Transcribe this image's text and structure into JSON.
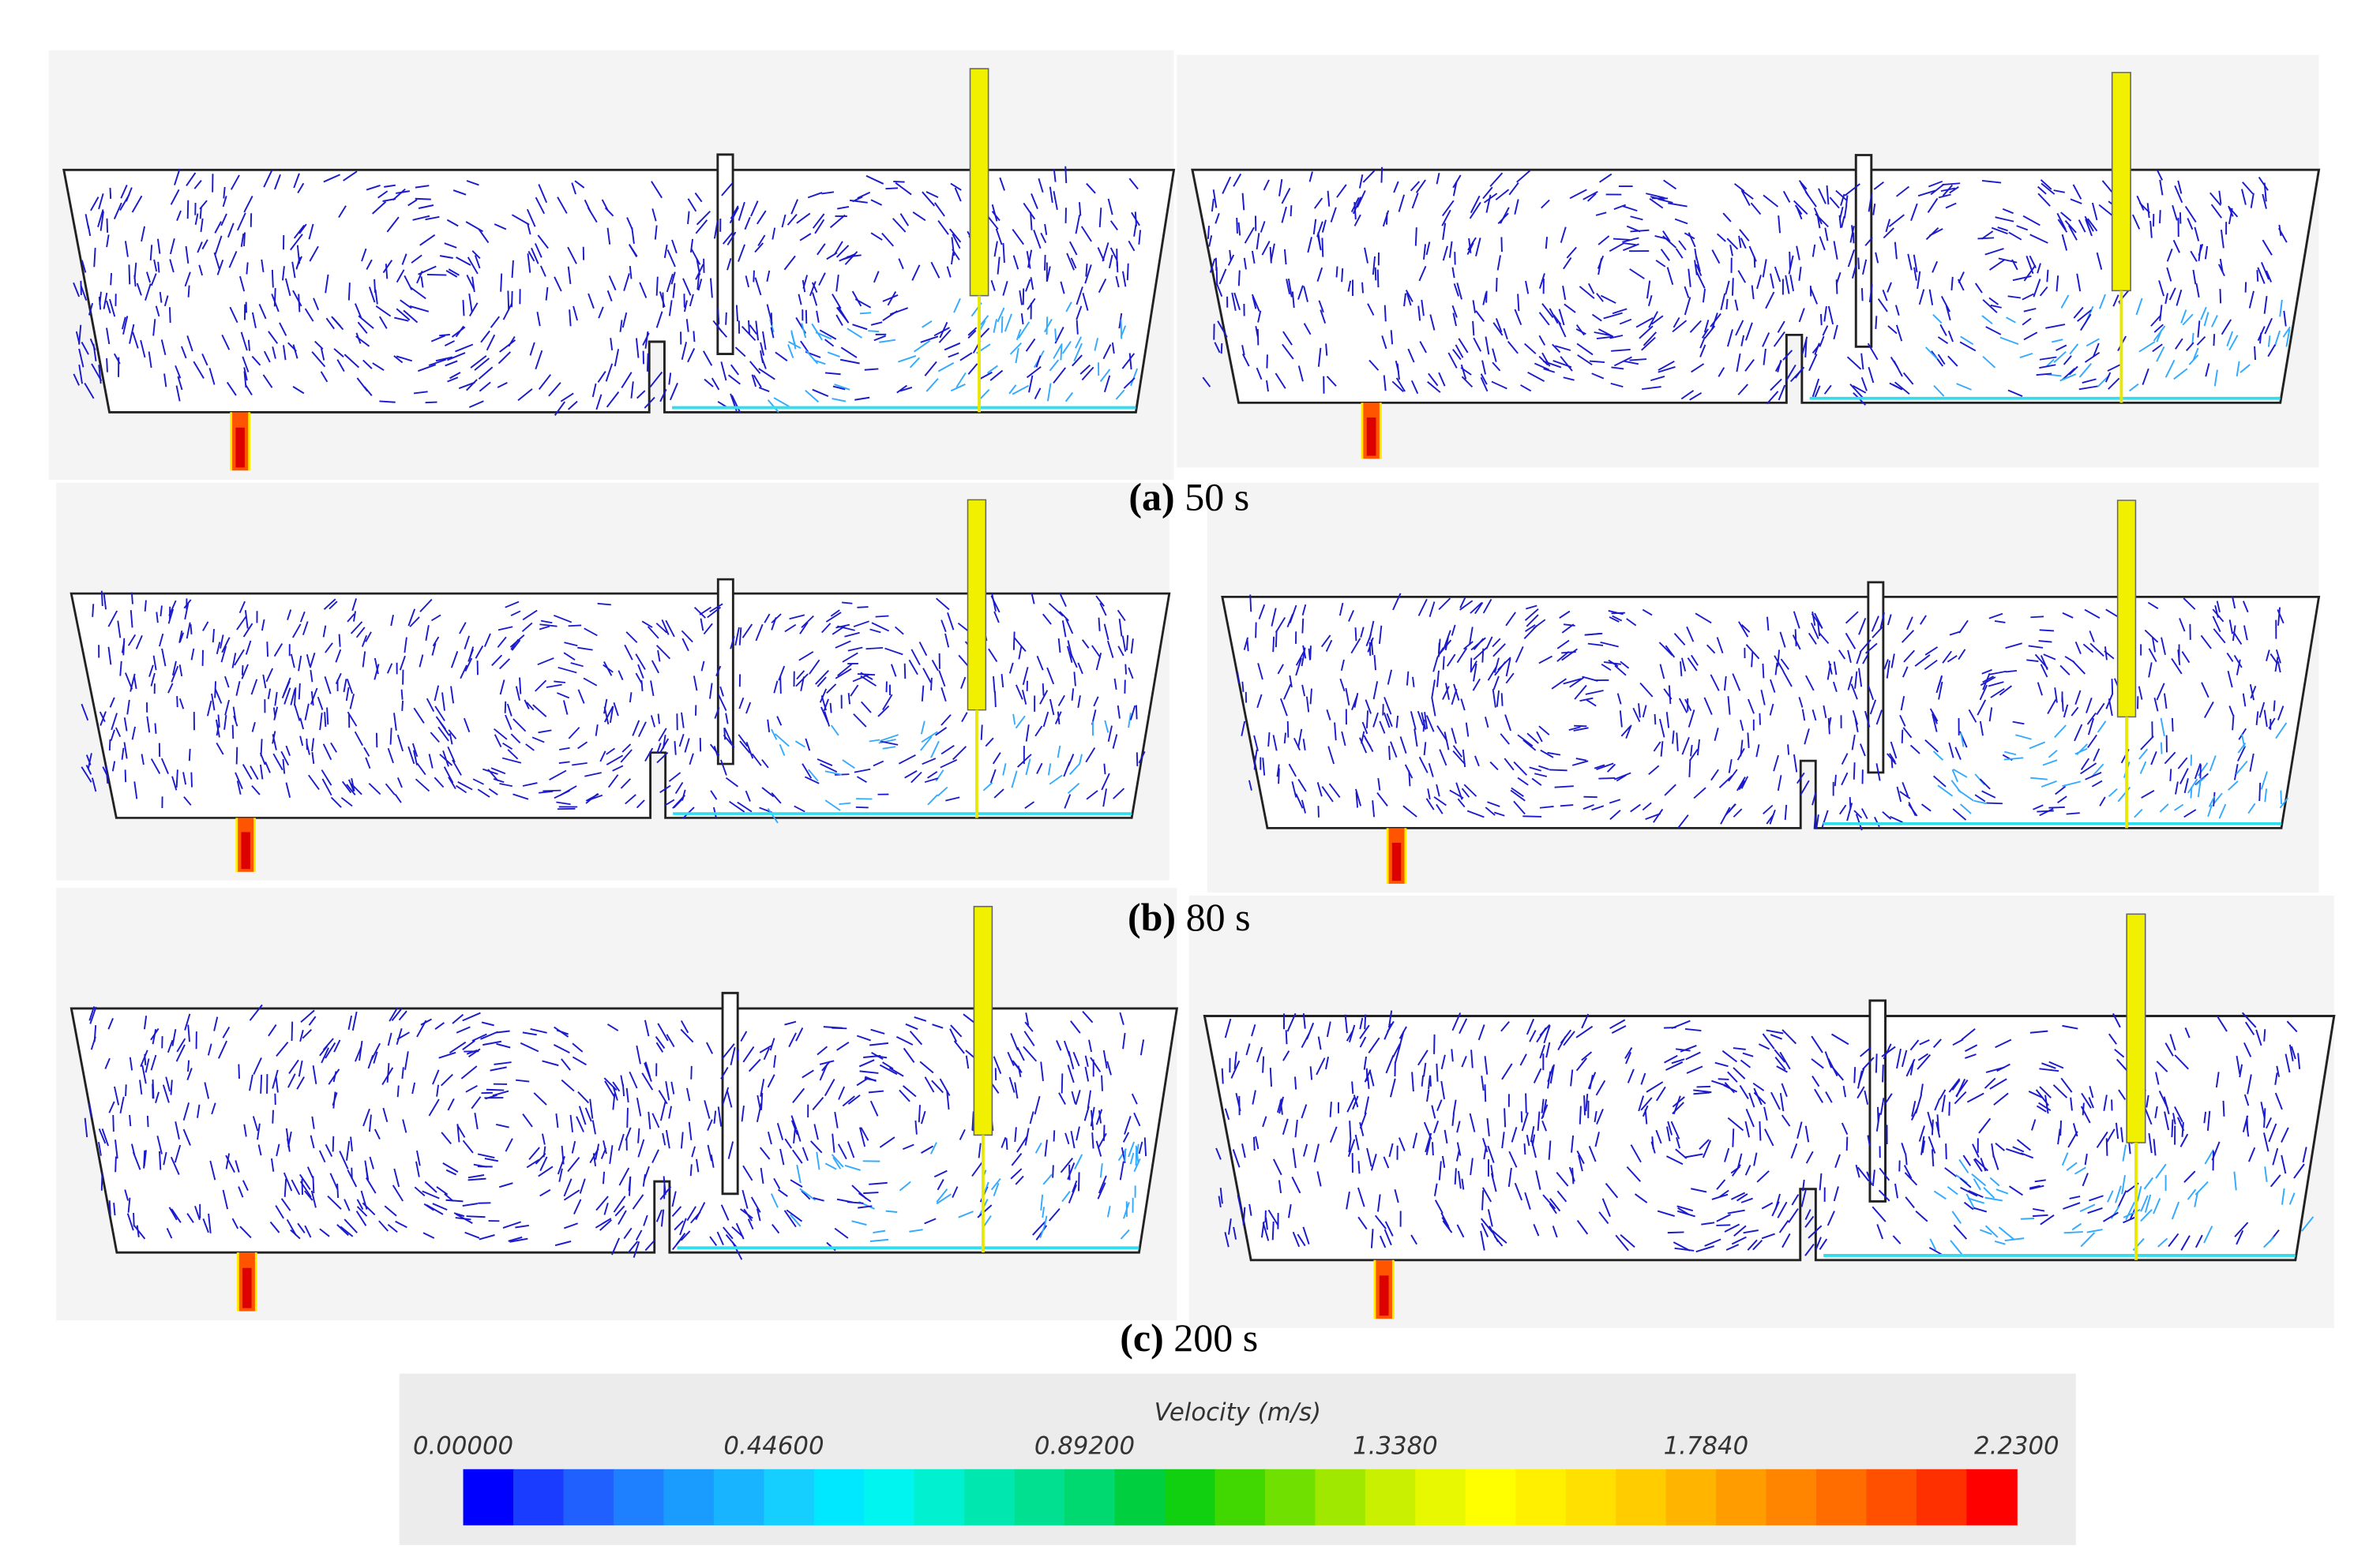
{
  "captions": [
    {
      "label": "(a)",
      "text": "50 s"
    },
    {
      "label": "(b)",
      "text": "80 s"
    },
    {
      "label": "(c)",
      "text": "200 s"
    }
  ],
  "colorbar": {
    "title": "Velocity (m/s)",
    "lim": [
      0,
      2.23
    ],
    "ticks": [
      {
        "value": 0,
        "label": "0.00000"
      },
      {
        "value": 0.446,
        "label": "0.44600"
      },
      {
        "value": 0.892,
        "label": "0.89200"
      },
      {
        "value": 1.338,
        "label": "1.3380"
      },
      {
        "value": 1.784,
        "label": "1.7840"
      },
      {
        "value": 2.23,
        "label": "2.2300"
      }
    ],
    "colors": [
      "#0000ff",
      "#1a3cff",
      "#2060ff",
      "#1e7fff",
      "#1a9cff",
      "#18b4ff",
      "#14cfff",
      "#00e8ff",
      "#00f5f0",
      "#00f0d0",
      "#00e8b0",
      "#00e090",
      "#00d870",
      "#00d040",
      "#10d010",
      "#40d800",
      "#70e000",
      "#a0e800",
      "#c8f000",
      "#e8f800",
      "#ffff00",
      "#fff000",
      "#ffe000",
      "#ffcc00",
      "#ffb400",
      "#ff9c00",
      "#ff8400",
      "#ff6c00",
      "#ff5000",
      "#ff3000",
      "#ff0000"
    ]
  }
}
